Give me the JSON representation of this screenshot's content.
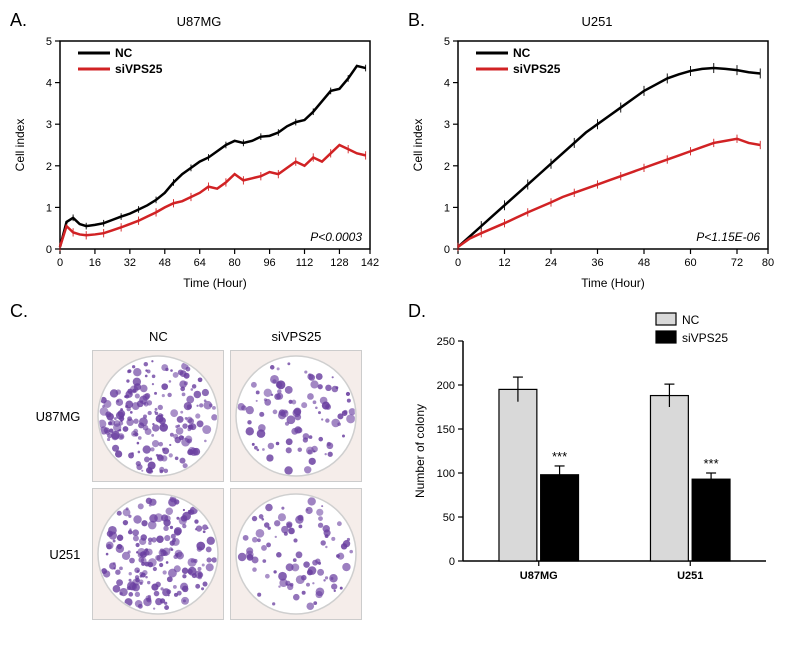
{
  "panelA": {
    "label": "A.",
    "title": "U87MG",
    "type": "line",
    "xlabel": "Time (Hour)",
    "ylabel": "Cell index",
    "xlim": [
      0,
      142
    ],
    "ylim": [
      0,
      5
    ],
    "xticks": [
      0,
      16,
      32,
      48,
      64,
      80,
      96,
      112,
      128,
      142
    ],
    "yticks": [
      0,
      1,
      2,
      3,
      4,
      5
    ],
    "pvalue_label": "P<0.0003",
    "legend": [
      {
        "name": "NC",
        "color": "#000000"
      },
      {
        "name": "siVPS25",
        "color": "#d12224"
      }
    ],
    "series": {
      "NC": {
        "color": "#000000",
        "linewidth": 2.5,
        "points": [
          [
            0,
            0.05
          ],
          [
            3,
            0.65
          ],
          [
            6,
            0.75
          ],
          [
            9,
            0.6
          ],
          [
            12,
            0.55
          ],
          [
            16,
            0.58
          ],
          [
            20,
            0.62
          ],
          [
            24,
            0.7
          ],
          [
            28,
            0.78
          ],
          [
            32,
            0.85
          ],
          [
            36,
            0.95
          ],
          [
            40,
            1.05
          ],
          [
            44,
            1.18
          ],
          [
            48,
            1.35
          ],
          [
            52,
            1.6
          ],
          [
            56,
            1.8
          ],
          [
            60,
            1.95
          ],
          [
            64,
            2.1
          ],
          [
            68,
            2.2
          ],
          [
            72,
            2.35
          ],
          [
            76,
            2.5
          ],
          [
            80,
            2.6
          ],
          [
            84,
            2.55
          ],
          [
            88,
            2.6
          ],
          [
            92,
            2.7
          ],
          [
            96,
            2.72
          ],
          [
            100,
            2.8
          ],
          [
            104,
            2.95
          ],
          [
            108,
            3.05
          ],
          [
            112,
            3.1
          ],
          [
            116,
            3.3
          ],
          [
            120,
            3.55
          ],
          [
            124,
            3.8
          ],
          [
            128,
            3.85
          ],
          [
            132,
            4.1
          ],
          [
            136,
            4.4
          ],
          [
            140,
            4.35
          ]
        ],
        "error": 0.08
      },
      "siVPS25": {
        "color": "#d12224",
        "linewidth": 2.5,
        "points": [
          [
            0,
            0.05
          ],
          [
            3,
            0.55
          ],
          [
            6,
            0.4
          ],
          [
            9,
            0.35
          ],
          [
            12,
            0.33
          ],
          [
            16,
            0.35
          ],
          [
            20,
            0.38
          ],
          [
            24,
            0.45
          ],
          [
            28,
            0.52
          ],
          [
            32,
            0.6
          ],
          [
            36,
            0.68
          ],
          [
            40,
            0.78
          ],
          [
            44,
            0.88
          ],
          [
            48,
            1.0
          ],
          [
            52,
            1.1
          ],
          [
            56,
            1.15
          ],
          [
            60,
            1.25
          ],
          [
            64,
            1.35
          ],
          [
            68,
            1.5
          ],
          [
            72,
            1.45
          ],
          [
            76,
            1.6
          ],
          [
            80,
            1.8
          ],
          [
            84,
            1.65
          ],
          [
            88,
            1.7
          ],
          [
            92,
            1.75
          ],
          [
            96,
            1.85
          ],
          [
            100,
            1.8
          ],
          [
            104,
            1.95
          ],
          [
            108,
            2.1
          ],
          [
            112,
            2.0
          ],
          [
            116,
            2.2
          ],
          [
            120,
            2.1
          ],
          [
            124,
            2.3
          ],
          [
            128,
            2.5
          ],
          [
            132,
            2.4
          ],
          [
            136,
            2.3
          ],
          [
            140,
            2.25
          ]
        ],
        "error": 0.1
      }
    },
    "label_fontsize": 12,
    "tick_fontsize": 11,
    "background_color": "#ffffff"
  },
  "panelB": {
    "label": "B.",
    "title": "U251",
    "type": "line",
    "xlabel": "Time (Hour)",
    "ylabel": "Cell index",
    "xlim": [
      0,
      80
    ],
    "ylim": [
      0,
      5
    ],
    "xticks": [
      0,
      12,
      24,
      36,
      48,
      60,
      72,
      80
    ],
    "yticks": [
      0,
      1,
      2,
      3,
      4,
      5
    ],
    "pvalue_label": "P<1.15E-06",
    "legend": [
      {
        "name": "NC",
        "color": "#000000"
      },
      {
        "name": "siVPS25",
        "color": "#d12224"
      }
    ],
    "series": {
      "NC": {
        "color": "#000000",
        "linewidth": 2.5,
        "points": [
          [
            0,
            0.05
          ],
          [
            3,
            0.3
          ],
          [
            6,
            0.55
          ],
          [
            9,
            0.8
          ],
          [
            12,
            1.05
          ],
          [
            15,
            1.3
          ],
          [
            18,
            1.55
          ],
          [
            21,
            1.8
          ],
          [
            24,
            2.05
          ],
          [
            27,
            2.3
          ],
          [
            30,
            2.55
          ],
          [
            33,
            2.8
          ],
          [
            36,
            3.0
          ],
          [
            39,
            3.2
          ],
          [
            42,
            3.4
          ],
          [
            45,
            3.6
          ],
          [
            48,
            3.8
          ],
          [
            51,
            3.95
          ],
          [
            54,
            4.1
          ],
          [
            57,
            4.2
          ],
          [
            60,
            4.28
          ],
          [
            63,
            4.33
          ],
          [
            66,
            4.35
          ],
          [
            69,
            4.33
          ],
          [
            72,
            4.3
          ],
          [
            75,
            4.25
          ],
          [
            78,
            4.22
          ]
        ],
        "error": 0.12
      },
      "siVPS25": {
        "color": "#d12224",
        "linewidth": 2.5,
        "points": [
          [
            0,
            0.05
          ],
          [
            3,
            0.25
          ],
          [
            6,
            0.38
          ],
          [
            9,
            0.5
          ],
          [
            12,
            0.62
          ],
          [
            15,
            0.75
          ],
          [
            18,
            0.88
          ],
          [
            21,
            1.0
          ],
          [
            24,
            1.12
          ],
          [
            27,
            1.25
          ],
          [
            30,
            1.35
          ],
          [
            33,
            1.45
          ],
          [
            36,
            1.55
          ],
          [
            39,
            1.65
          ],
          [
            42,
            1.75
          ],
          [
            45,
            1.85
          ],
          [
            48,
            1.95
          ],
          [
            51,
            2.05
          ],
          [
            54,
            2.15
          ],
          [
            57,
            2.25
          ],
          [
            60,
            2.35
          ],
          [
            63,
            2.45
          ],
          [
            66,
            2.55
          ],
          [
            69,
            2.6
          ],
          [
            72,
            2.65
          ],
          [
            75,
            2.55
          ],
          [
            78,
            2.5
          ]
        ],
        "error": 0.1
      }
    },
    "label_fontsize": 12,
    "tick_fontsize": 11,
    "background_color": "#ffffff"
  },
  "panelC": {
    "label": "C.",
    "type": "colony-assay-image",
    "columns": [
      "NC",
      "siVPS25"
    ],
    "rows": [
      "U87MG",
      "U251"
    ],
    "dish_bg": "#f5edea",
    "plate_border": "#cfcfcf",
    "stain_color": "#6a3fa0",
    "densities": {
      "U87MG": {
        "NC": 195,
        "siVPS25": 98
      },
      "U251": {
        "NC": 188,
        "siVPS25": 93
      }
    }
  },
  "panelD": {
    "label": "D.",
    "type": "bar",
    "ylabel": "Number of colony",
    "ylim": [
      0,
      250
    ],
    "yticks": [
      0,
      50,
      100,
      150,
      200,
      250
    ],
    "categories": [
      "U87MG",
      "U251"
    ],
    "groups": [
      {
        "name": "NC",
        "fill": "#d9d9d9",
        "stroke": "#000000"
      },
      {
        "name": "siVPS25",
        "fill": "#000000",
        "stroke": "#000000"
      }
    ],
    "data": {
      "U87MG": {
        "NC": {
          "value": 195,
          "err": 14
        },
        "siVPS25": {
          "value": 98,
          "err": 10,
          "sig": "***"
        }
      },
      "U251": {
        "NC": {
          "value": 188,
          "err": 13
        },
        "siVPS25": {
          "value": 93,
          "err": 7,
          "sig": "***"
        }
      }
    },
    "bar_width": 0.35,
    "label_fontsize": 12,
    "tick_fontsize": 11,
    "background_color": "#ffffff"
  }
}
